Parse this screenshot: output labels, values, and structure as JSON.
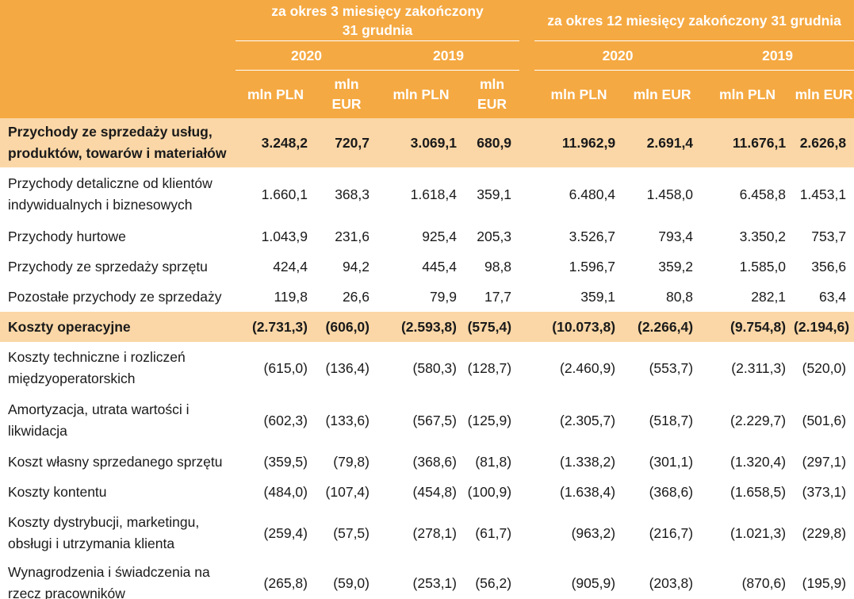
{
  "header": {
    "period_3m": "za okres 3 miesięcy zakończony 31 grudnia",
    "period_12m": "za okres 12 miesięcy zakończony 31 grudnia",
    "years": [
      "2020",
      "2019",
      "2020",
      "2019"
    ],
    "units": [
      "mln PLN",
      "mln EUR",
      "mln PLN",
      "mln EUR",
      "mln PLN",
      "mln EUR",
      "mln PLN",
      "mln EUR"
    ]
  },
  "rows": [
    {
      "label": "Przychody ze sprzedaży usług, produktów, towarów i materiałów",
      "values": [
        "3.248,2",
        "720,7",
        "3.069,1",
        "680,9",
        "11.962,9",
        "2.691,4",
        "11.676,1",
        "2.626,8"
      ]
    },
    {
      "label": "Przychody detaliczne od klientów indywidualnych i biznesowych",
      "values": [
        "1.660,1",
        "368,3",
        "1.618,4",
        "359,1",
        "6.480,4",
        "1.458,0",
        "6.458,8",
        "1.453,1"
      ]
    },
    {
      "label": "Przychody hurtowe",
      "values": [
        "1.043,9",
        "231,6",
        "925,4",
        "205,3",
        "3.526,7",
        "793,4",
        "3.350,2",
        "753,7"
      ]
    },
    {
      "label": "Przychody ze sprzedaży sprzętu",
      "values": [
        "424,4",
        "94,2",
        "445,4",
        "98,8",
        "1.596,7",
        "359,2",
        "1.585,0",
        "356,6"
      ]
    },
    {
      "label": "Pozostałe przychody ze sprzedaży",
      "values": [
        "119,8",
        "26,6",
        "79,9",
        "17,7",
        "359,1",
        "80,8",
        "282,1",
        "63,4"
      ]
    },
    {
      "label": "Koszty operacyjne",
      "values": [
        "(2.731,3)",
        "(606,0)",
        "(2.593,8)",
        "(575,4)",
        "(10.073,8)",
        "(2.266,4)",
        "(9.754,8)",
        "(2.194,6)"
      ]
    },
    {
      "label": "Koszty techniczne i rozliczeń międzyoperatorskich",
      "values": [
        "(615,0)",
        "(136,4)",
        "(580,3)",
        "(128,7)",
        "(2.460,9)",
        "(553,7)",
        "(2.311,3)",
        "(520,0)"
      ]
    },
    {
      "label": "Amortyzacja, utrata wartości i likwidacja",
      "values": [
        "(602,3)",
        "(133,6)",
        "(567,5)",
        "(125,9)",
        "(2.305,7)",
        "(518,7)",
        "(2.229,7)",
        "(501,6)"
      ]
    },
    {
      "label": "Koszt własny sprzedanego sprzętu",
      "values": [
        "(359,5)",
        "(79,8)",
        "(368,6)",
        "(81,8)",
        "(1.338,2)",
        "(301,1)",
        "(1.320,4)",
        "(297,1)"
      ]
    },
    {
      "label": "Koszty kontentu",
      "values": [
        "(484,0)",
        "(107,4)",
        "(454,8)",
        "(100,9)",
        "(1.638,4)",
        "(368,6)",
        "(1.658,5)",
        "(373,1)"
      ]
    },
    {
      "label": "Koszty dystrybucji, marketingu, obsługi i utrzymania klienta",
      "values": [
        "(259,4)",
        "(57,5)",
        "(278,1)",
        "(61,7)",
        "(963,2)",
        "(216,7)",
        "(1.021,3)",
        "(229,8)"
      ]
    },
    {
      "label": "Wynagrodzenia i świadczenia na rzecz pracowników",
      "values": [
        "(265,8)",
        "(59,0)",
        "(253,1)",
        "(56,2)",
        "(905,9)",
        "(203,8)",
        "(870,6)",
        "(195,9)"
      ]
    }
  ]
}
